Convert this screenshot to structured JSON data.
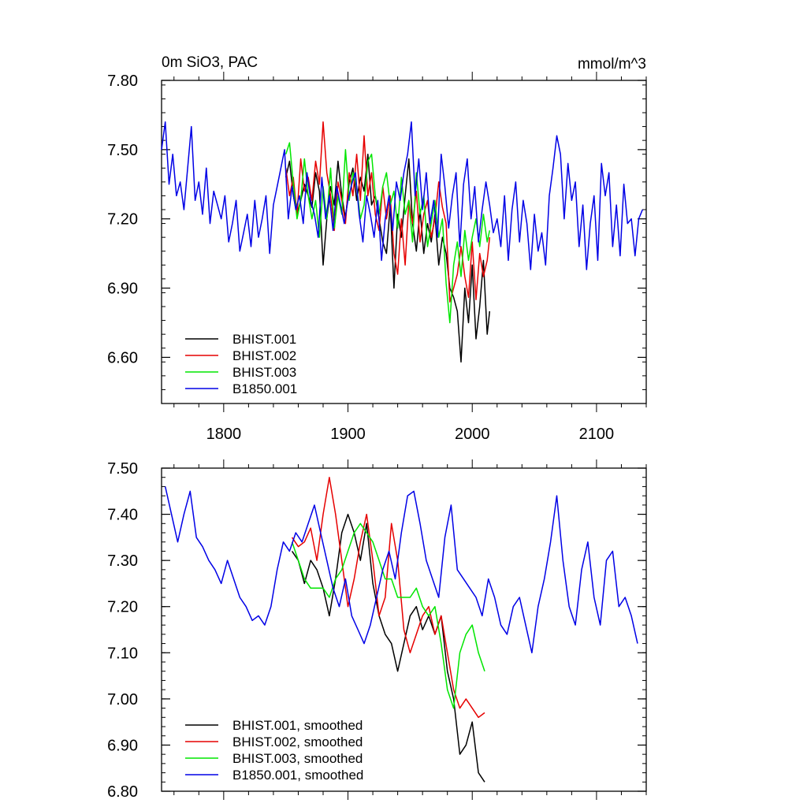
{
  "colors": {
    "BHIST.001": "#000000",
    "BHIST.002": "#e60000",
    "BHIST.003": "#00e600",
    "B1850.001": "#0000e6"
  },
  "chart_data": [
    {
      "type": "line",
      "title_left": "0m SiO3, PAC",
      "title_right": "mmol/m^3",
      "xlim": [
        1750,
        2140
      ],
      "ylim": [
        6.4,
        7.8
      ],
      "yticks": [
        "6.60",
        "6.90",
        "7.20",
        "7.50",
        "7.80"
      ],
      "xticks": [
        "1800",
        "1900",
        "2000",
        "2100"
      ],
      "legend_position": "bottom-left",
      "series": [
        {
          "name": "BHIST.001",
          "x": [
            1850,
            1853,
            1856,
            1859,
            1862,
            1865,
            1868,
            1871,
            1874,
            1877,
            1880,
            1883,
            1886,
            1889,
            1892,
            1895,
            1898,
            1901,
            1904,
            1907,
            1910,
            1913,
            1916,
            1919,
            1922,
            1925,
            1928,
            1931,
            1934,
            1937,
            1940,
            1943,
            1946,
            1949,
            1952,
            1955,
            1958,
            1961,
            1964,
            1967,
            1970,
            1973,
            1976,
            1979,
            1982,
            1985,
            1988,
            1991,
            1994,
            1997,
            2000,
            2003,
            2006,
            2009,
            2012,
            2014
          ],
          "values": [
            7.38,
            7.45,
            7.3,
            7.22,
            7.28,
            7.35,
            7.3,
            7.25,
            7.4,
            7.32,
            7.0,
            7.2,
            7.34,
            7.26,
            7.45,
            7.3,
            7.2,
            7.36,
            7.42,
            7.28,
            7.38,
            7.32,
            7.48,
            7.26,
            7.3,
            7.2,
            7.1,
            7.05,
            7.26,
            6.9,
            7.22,
            7.12,
            7.3,
            7.46,
            7.18,
            7.06,
            7.24,
            7.05,
            7.18,
            7.1,
            7.22,
            7.0,
            7.12,
            7.05,
            6.9,
            6.86,
            6.8,
            6.58,
            6.9,
            6.75,
            7.0,
            6.68,
            6.82,
            7.02,
            6.7,
            6.8
          ]
        },
        {
          "name": "BHIST.002",
          "x": [
            1850,
            1853,
            1856,
            1859,
            1862,
            1865,
            1868,
            1871,
            1874,
            1877,
            1880,
            1883,
            1886,
            1889,
            1892,
            1895,
            1898,
            1901,
            1904,
            1907,
            1910,
            1913,
            1916,
            1919,
            1922,
            1925,
            1928,
            1931,
            1934,
            1937,
            1940,
            1943,
            1946,
            1949,
            1952,
            1955,
            1958,
            1961,
            1964,
            1967,
            1970,
            1973,
            1976,
            1979,
            1982,
            1985,
            1988,
            1991,
            1994,
            1997,
            2000,
            2003,
            2006,
            2009,
            2012,
            2014
          ],
          "values": [
            7.42,
            7.3,
            7.38,
            7.22,
            7.46,
            7.32,
            7.38,
            7.28,
            7.45,
            7.35,
            7.62,
            7.4,
            7.3,
            7.15,
            7.36,
            7.28,
            7.18,
            7.4,
            7.3,
            7.48,
            7.28,
            7.56,
            7.3,
            7.4,
            7.22,
            7.15,
            7.34,
            7.2,
            7.3,
            7.05,
            6.96,
            7.2,
            7.0,
            7.28,
            7.18,
            7.32,
            7.1,
            7.22,
            7.28,
            7.12,
            7.2,
            7.36,
            7.25,
            7.18,
            6.84,
            6.9,
            6.96,
            7.08,
            6.95,
            6.86,
            7.1,
            6.85,
            7.05,
            6.95,
            7.02,
            7.12
          ]
        },
        {
          "name": "BHIST.003",
          "x": [
            1850,
            1853,
            1856,
            1859,
            1862,
            1865,
            1868,
            1871,
            1874,
            1877,
            1880,
            1883,
            1886,
            1889,
            1892,
            1895,
            1898,
            1901,
            1904,
            1907,
            1910,
            1913,
            1916,
            1919,
            1922,
            1925,
            1928,
            1931,
            1934,
            1937,
            1940,
            1943,
            1946,
            1949,
            1952,
            1955,
            1958,
            1961,
            1964,
            1967,
            1970,
            1973,
            1976,
            1979,
            1982,
            1985,
            1988,
            1991,
            1994,
            1997,
            2000,
            2003,
            2006,
            2009,
            2012,
            2014
          ],
          "values": [
            7.48,
            7.53,
            7.35,
            7.2,
            7.28,
            7.46,
            7.3,
            7.2,
            7.28,
            7.12,
            7.34,
            7.2,
            7.42,
            7.16,
            7.3,
            7.22,
            7.5,
            7.28,
            7.4,
            7.34,
            7.2,
            7.26,
            7.45,
            7.48,
            7.3,
            7.22,
            7.34,
            7.4,
            7.26,
            7.32,
            7.16,
            7.38,
            7.22,
            7.28,
            7.1,
            7.4,
            7.22,
            7.3,
            7.08,
            7.18,
            7.28,
            7.12,
            7.2,
            6.92,
            6.75,
            7.0,
            7.1,
            6.95,
            7.15,
            7.02,
            7.12,
            7.2,
            7.08,
            7.22,
            7.1,
            7.15
          ]
        },
        {
          "name": "B1850.001",
          "x": [
            1750,
            1753,
            1756,
            1759,
            1762,
            1765,
            1768,
            1771,
            1774,
            1777,
            1780,
            1783,
            1786,
            1789,
            1792,
            1795,
            1798,
            1801,
            1804,
            1807,
            1810,
            1813,
            1816,
            1819,
            1822,
            1825,
            1828,
            1831,
            1834,
            1837,
            1840,
            1843,
            1846,
            1849,
            1852,
            1855,
            1858,
            1861,
            1864,
            1867,
            1870,
            1873,
            1876,
            1879,
            1882,
            1885,
            1888,
            1891,
            1894,
            1897,
            1900,
            1903,
            1906,
            1909,
            1912,
            1915,
            1918,
            1921,
            1924,
            1927,
            1930,
            1933,
            1936,
            1939,
            1942,
            1945,
            1948,
            1951,
            1954,
            1957,
            1960,
            1963,
            1966,
            1969,
            1972,
            1975,
            1978,
            1981,
            1984,
            1987,
            1990,
            1993,
            1996,
            1999,
            2002,
            2005,
            2008,
            2011,
            2014,
            2017,
            2020,
            2023,
            2026,
            2029,
            2032,
            2035,
            2038,
            2041,
            2044,
            2047,
            2050,
            2053,
            2056,
            2059,
            2062,
            2065,
            2068,
            2071,
            2074,
            2077,
            2080,
            2083,
            2086,
            2089,
            2092,
            2095,
            2098,
            2101,
            2104,
            2107,
            2110,
            2113,
            2116,
            2119,
            2122,
            2125,
            2128,
            2131,
            2134,
            2137
          ],
          "values": [
            7.5,
            7.62,
            7.35,
            7.48,
            7.3,
            7.36,
            7.24,
            7.42,
            7.6,
            7.28,
            7.36,
            7.22,
            7.42,
            7.18,
            7.32,
            7.26,
            7.2,
            7.3,
            7.1,
            7.18,
            7.28,
            7.06,
            7.14,
            7.22,
            7.08,
            7.28,
            7.12,
            7.2,
            7.3,
            7.05,
            7.26,
            7.34,
            7.42,
            7.5,
            7.2,
            7.34,
            7.24,
            7.3,
            7.18,
            7.4,
            7.28,
            7.22,
            7.12,
            7.38,
            7.2,
            7.3,
            7.15,
            7.34,
            7.26,
            7.18,
            7.28,
            7.35,
            7.4,
            7.22,
            7.1,
            7.3,
            7.22,
            7.12,
            7.28,
            7.02,
            7.2,
            7.3,
            7.15,
            7.36,
            7.28,
            7.4,
            7.48,
            7.62,
            7.3,
            7.46,
            7.24,
            7.4,
            7.18,
            7.28,
            7.12,
            7.48,
            7.34,
            7.16,
            7.3,
            7.4,
            7.08,
            7.35,
            7.46,
            7.2,
            7.34,
            7.1,
            7.24,
            7.36,
            7.26,
            7.14,
            7.2,
            7.08,
            7.3,
            7.02,
            7.24,
            7.36,
            7.1,
            7.28,
            7.18,
            6.98,
            7.22,
            7.06,
            7.14,
            7.0,
            7.3,
            7.42,
            7.56,
            7.48,
            7.2,
            7.44,
            7.28,
            7.36,
            7.08,
            7.26,
            6.98,
            7.18,
            7.3,
            7.02,
            7.44,
            7.3,
            7.4,
            7.08,
            7.26,
            7.04,
            7.35,
            7.18,
            7.2,
            7.04,
            7.2,
            7.24
          ]
        }
      ]
    },
    {
      "type": "line",
      "xlim": [
        1750,
        2140
      ],
      "ylim": [
        6.8,
        7.5
      ],
      "yticks": [
        "6.80",
        "6.90",
        "7.00",
        "7.10",
        "7.20",
        "7.30",
        "7.40",
        "7.50"
      ],
      "legend_position": "bottom-left",
      "series": [
        {
          "name": "BHIST.001, smoothed",
          "x": [
            1855,
            1860,
            1865,
            1870,
            1875,
            1880,
            1885,
            1890,
            1895,
            1900,
            1905,
            1910,
            1915,
            1920,
            1925,
            1930,
            1935,
            1940,
            1945,
            1950,
            1955,
            1960,
            1965,
            1970,
            1975,
            1980,
            1985,
            1990,
            1995,
            2000,
            2005,
            2010
          ],
          "values": [
            7.32,
            7.3,
            7.25,
            7.3,
            7.28,
            7.24,
            7.18,
            7.26,
            7.36,
            7.4,
            7.36,
            7.3,
            7.38,
            7.25,
            7.18,
            7.14,
            7.12,
            7.06,
            7.12,
            7.18,
            7.2,
            7.15,
            7.18,
            7.14,
            7.18,
            7.06,
            7.0,
            6.88,
            6.9,
            6.95,
            6.84,
            6.82
          ]
        },
        {
          "name": "BHIST.002, smoothed",
          "x": [
            1855,
            1860,
            1865,
            1870,
            1875,
            1880,
            1885,
            1890,
            1895,
            1900,
            1905,
            1910,
            1915,
            1920,
            1925,
            1930,
            1935,
            1940,
            1945,
            1950,
            1955,
            1960,
            1965,
            1970,
            1975,
            1980,
            1985,
            1990,
            1995,
            2000,
            2005,
            2010
          ],
          "values": [
            7.35,
            7.33,
            7.34,
            7.37,
            7.3,
            7.4,
            7.48,
            7.4,
            7.3,
            7.2,
            7.26,
            7.34,
            7.4,
            7.3,
            7.18,
            7.22,
            7.38,
            7.3,
            7.15,
            7.1,
            7.14,
            7.18,
            7.2,
            7.14,
            7.18,
            7.1,
            7.02,
            6.98,
            7.0,
            6.98,
            6.96,
            6.97
          ]
        },
        {
          "name": "BHIST.003, smoothed",
          "x": [
            1855,
            1860,
            1865,
            1870,
            1875,
            1880,
            1885,
            1890,
            1895,
            1900,
            1905,
            1910,
            1915,
            1920,
            1925,
            1930,
            1935,
            1940,
            1945,
            1950,
            1955,
            1960,
            1965,
            1970,
            1975,
            1980,
            1985,
            1990,
            1995,
            2000,
            2005,
            2010
          ],
          "values": [
            7.34,
            7.3,
            7.26,
            7.24,
            7.24,
            7.24,
            7.22,
            7.26,
            7.28,
            7.32,
            7.36,
            7.38,
            7.36,
            7.34,
            7.3,
            7.26,
            7.26,
            7.22,
            7.22,
            7.22,
            7.24,
            7.2,
            7.18,
            7.2,
            7.12,
            7.02,
            6.98,
            7.1,
            7.14,
            7.16,
            7.1,
            7.06
          ]
        },
        {
          "name": "B1850.001, smoothed",
          "x": [
            1753,
            1758,
            1763,
            1768,
            1773,
            1778,
            1783,
            1788,
            1793,
            1798,
            1803,
            1808,
            1813,
            1818,
            1823,
            1828,
            1833,
            1838,
            1843,
            1848,
            1853,
            1858,
            1863,
            1868,
            1873,
            1878,
            1883,
            1888,
            1893,
            1898,
            1903,
            1908,
            1913,
            1918,
            1923,
            1928,
            1933,
            1938,
            1943,
            1948,
            1953,
            1958,
            1963,
            1968,
            1973,
            1978,
            1983,
            1988,
            1993,
            1998,
            2003,
            2008,
            2013,
            2018,
            2023,
            2028,
            2033,
            2038,
            2043,
            2048,
            2053,
            2058,
            2063,
            2068,
            2073,
            2078,
            2083,
            2088,
            2093,
            2098,
            2103,
            2108,
            2113,
            2118,
            2123,
            2128,
            2133
          ],
          "values": [
            7.46,
            7.4,
            7.34,
            7.4,
            7.45,
            7.35,
            7.33,
            7.3,
            7.28,
            7.25,
            7.3,
            7.26,
            7.22,
            7.2,
            7.17,
            7.18,
            7.16,
            7.2,
            7.28,
            7.34,
            7.32,
            7.36,
            7.34,
            7.38,
            7.42,
            7.36,
            7.3,
            7.24,
            7.2,
            7.26,
            7.18,
            7.15,
            7.12,
            7.16,
            7.22,
            7.28,
            7.32,
            7.26,
            7.36,
            7.44,
            7.45,
            7.38,
            7.3,
            7.26,
            7.22,
            7.35,
            7.42,
            7.28,
            7.26,
            7.24,
            7.22,
            7.18,
            7.26,
            7.22,
            7.16,
            7.14,
            7.2,
            7.22,
            7.16,
            7.1,
            7.2,
            7.26,
            7.34,
            7.44,
            7.3,
            7.2,
            7.16,
            7.28,
            7.34,
            7.22,
            7.16,
            7.3,
            7.32,
            7.2,
            7.22,
            7.18,
            7.12
          ]
        }
      ]
    }
  ]
}
